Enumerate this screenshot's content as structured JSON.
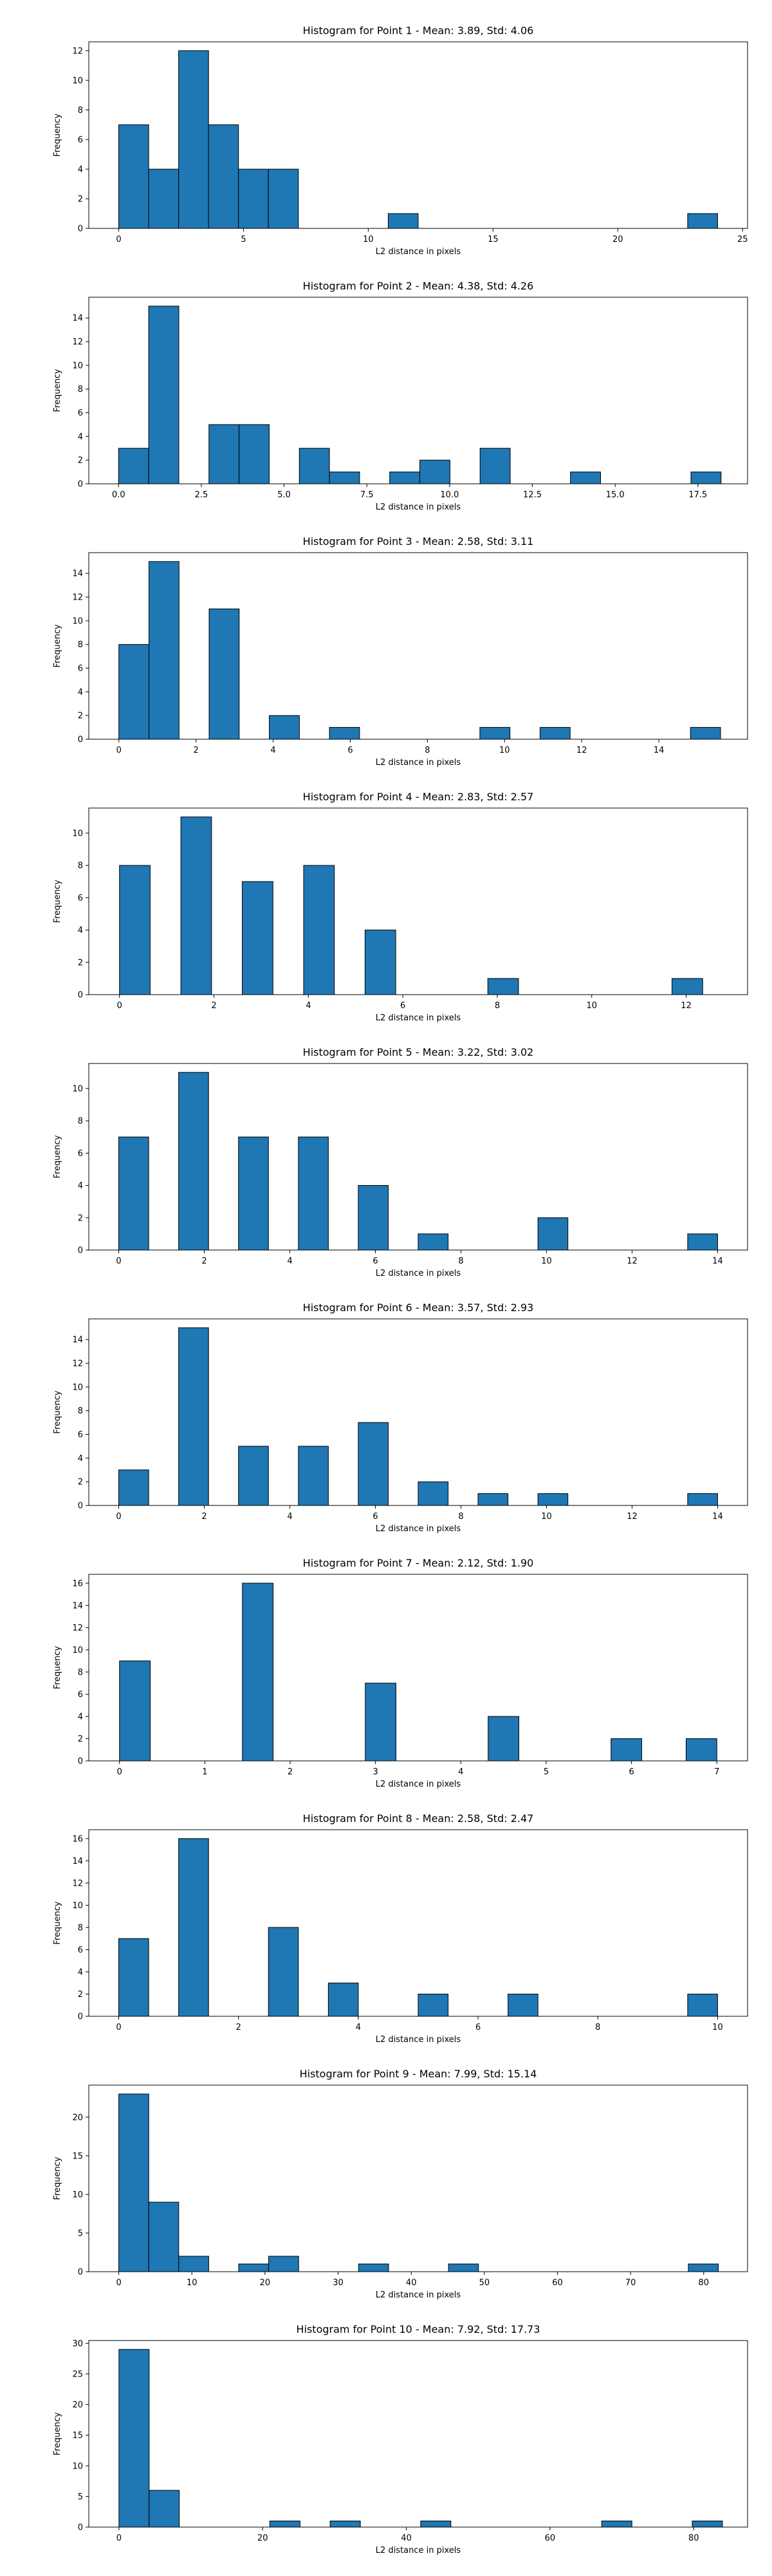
{
  "figure": {
    "background": "#ffffff"
  },
  "chart_data": [
    {
      "type": "bar",
      "title": "Histogram for Point 1 - Mean: 3.89, Std: 4.06",
      "xlabel": "L2 distance in pixels",
      "ylabel": "Frequency",
      "xlim": [
        -1.2,
        25.2
      ],
      "ylim": [
        0,
        12.6
      ],
      "xticks": [
        0,
        5,
        10,
        15,
        20,
        25
      ],
      "xtick_labels": [
        "0",
        "5",
        "10",
        "15",
        "20",
        "25"
      ],
      "yticks": [
        0,
        2,
        4,
        6,
        8,
        10,
        12
      ],
      "bar_color": "#1f77b4",
      "edge_color": "#000000",
      "grid": false,
      "bins": [
        {
          "x0": 0.0,
          "x1": 1.2,
          "count": 7
        },
        {
          "x0": 1.2,
          "x1": 2.4,
          "count": 4
        },
        {
          "x0": 2.4,
          "x1": 3.6,
          "count": 12
        },
        {
          "x0": 3.6,
          "x1": 4.8,
          "count": 7
        },
        {
          "x0": 4.8,
          "x1": 6.0,
          "count": 4
        },
        {
          "x0": 6.0,
          "x1": 7.2,
          "count": 4
        },
        {
          "x0": 10.8,
          "x1": 12.0,
          "count": 1
        },
        {
          "x0": 22.8,
          "x1": 24.0,
          "count": 1
        }
      ]
    },
    {
      "type": "bar",
      "title": "Histogram for Point 2 - Mean: 4.38, Std: 4.26",
      "xlabel": "L2 distance in pixels",
      "ylabel": "Frequency",
      "xlim": [
        -0.9,
        19.0
      ],
      "ylim": [
        0,
        15.75
      ],
      "xticks": [
        0,
        2.5,
        5,
        7.5,
        10,
        12.5,
        15,
        17.5
      ],
      "xtick_labels": [
        "0.0",
        "2.5",
        "5.0",
        "7.5",
        "10.0",
        "12.5",
        "15.0",
        "17.5"
      ],
      "yticks": [
        0,
        2,
        4,
        6,
        8,
        10,
        12,
        14
      ],
      "bar_color": "#1f77b4",
      "edge_color": "#000000",
      "grid": false,
      "bins": [
        {
          "x0": 0.0,
          "x1": 0.91,
          "count": 3
        },
        {
          "x0": 0.91,
          "x1": 1.82,
          "count": 15
        },
        {
          "x0": 2.73,
          "x1": 3.64,
          "count": 5
        },
        {
          "x0": 3.64,
          "x1": 4.55,
          "count": 5
        },
        {
          "x0": 5.46,
          "x1": 6.37,
          "count": 3
        },
        {
          "x0": 6.37,
          "x1": 7.28,
          "count": 1
        },
        {
          "x0": 8.19,
          "x1": 9.1,
          "count": 1
        },
        {
          "x0": 9.1,
          "x1": 10.01,
          "count": 2
        },
        {
          "x0": 10.92,
          "x1": 11.83,
          "count": 3
        },
        {
          "x0": 13.65,
          "x1": 14.56,
          "count": 1
        },
        {
          "x0": 17.29,
          "x1": 18.2,
          "count": 1
        }
      ]
    },
    {
      "type": "bar",
      "title": "Histogram for Point 3 - Mean: 2.58, Std: 3.11",
      "xlabel": "L2 distance in pixels",
      "ylabel": "Frequency",
      "xlim": [
        -0.78,
        16.3
      ],
      "ylim": [
        0,
        15.75
      ],
      "xticks": [
        0,
        2,
        4,
        6,
        8,
        10,
        12,
        14
      ],
      "xtick_labels": [
        "0",
        "2",
        "4",
        "6",
        "8",
        "10",
        "12",
        "14"
      ],
      "yticks": [
        0,
        2,
        4,
        6,
        8,
        10,
        12,
        14
      ],
      "bar_color": "#1f77b4",
      "edge_color": "#000000",
      "grid": false,
      "bins": [
        {
          "x0": 0.0,
          "x1": 0.78,
          "count": 8
        },
        {
          "x0": 0.78,
          "x1": 1.56,
          "count": 15
        },
        {
          "x0": 2.34,
          "x1": 3.12,
          "count": 11
        },
        {
          "x0": 3.9,
          "x1": 4.68,
          "count": 2
        },
        {
          "x0": 5.46,
          "x1": 6.24,
          "count": 1
        },
        {
          "x0": 9.36,
          "x1": 10.14,
          "count": 1
        },
        {
          "x0": 10.92,
          "x1": 11.7,
          "count": 1
        },
        {
          "x0": 14.82,
          "x1": 15.6,
          "count": 1
        }
      ]
    },
    {
      "type": "bar",
      "title": "Histogram for Point 4 - Mean: 2.83, Std: 2.57",
      "xlabel": "L2 distance in pixels",
      "ylabel": "Frequency",
      "xlim": [
        -0.65,
        13.3
      ],
      "ylim": [
        0,
        11.55
      ],
      "xticks": [
        0,
        2,
        4,
        6,
        8,
        10,
        12
      ],
      "xtick_labels": [
        "0",
        "2",
        "4",
        "6",
        "8",
        "10",
        "12"
      ],
      "yticks": [
        0,
        2,
        4,
        6,
        8,
        10
      ],
      "bar_color": "#1f77b4",
      "edge_color": "#000000",
      "grid": false,
      "bins": [
        {
          "x0": 0.0,
          "x1": 0.65,
          "count": 8
        },
        {
          "x0": 1.3,
          "x1": 1.95,
          "count": 11
        },
        {
          "x0": 2.6,
          "x1": 3.25,
          "count": 7
        },
        {
          "x0": 3.9,
          "x1": 4.55,
          "count": 8
        },
        {
          "x0": 5.2,
          "x1": 5.85,
          "count": 4
        },
        {
          "x0": 7.8,
          "x1": 8.45,
          "count": 1
        },
        {
          "x0": 11.7,
          "x1": 12.35,
          "count": 1
        }
      ]
    },
    {
      "type": "bar",
      "title": "Histogram for Point 5 - Mean: 3.22, Std: 3.02",
      "xlabel": "L2 distance in pixels",
      "ylabel": "Frequency",
      "xlim": [
        -0.7,
        14.7
      ],
      "ylim": [
        0,
        11.55
      ],
      "xticks": [
        0,
        2,
        4,
        6,
        8,
        10,
        12,
        14
      ],
      "xtick_labels": [
        "0",
        "2",
        "4",
        "6",
        "8",
        "10",
        "12",
        "14"
      ],
      "yticks": [
        0,
        2,
        4,
        6,
        8,
        10
      ],
      "bar_color": "#1f77b4",
      "edge_color": "#000000",
      "grid": false,
      "bins": [
        {
          "x0": 0.0,
          "x1": 0.7,
          "count": 7
        },
        {
          "x0": 1.4,
          "x1": 2.1,
          "count": 11
        },
        {
          "x0": 2.8,
          "x1": 3.5,
          "count": 7
        },
        {
          "x0": 4.2,
          "x1": 4.9,
          "count": 7
        },
        {
          "x0": 5.6,
          "x1": 6.3,
          "count": 4
        },
        {
          "x0": 7.0,
          "x1": 7.7,
          "count": 1
        },
        {
          "x0": 9.8,
          "x1": 10.5,
          "count": 2
        },
        {
          "x0": 13.3,
          "x1": 14.0,
          "count": 1
        }
      ]
    },
    {
      "type": "bar",
      "title": "Histogram for Point 6 - Mean: 3.57, Std: 2.93",
      "xlabel": "L2 distance in pixels",
      "ylabel": "Frequency",
      "xlim": [
        -0.7,
        14.7
      ],
      "ylim": [
        0,
        15.75
      ],
      "xticks": [
        0,
        2,
        4,
        6,
        8,
        10,
        12,
        14
      ],
      "xtick_labels": [
        "0",
        "2",
        "4",
        "6",
        "8",
        "10",
        "12",
        "14"
      ],
      "yticks": [
        0,
        2,
        4,
        6,
        8,
        10,
        12,
        14
      ],
      "bar_color": "#1f77b4",
      "edge_color": "#000000",
      "grid": false,
      "bins": [
        {
          "x0": 0.0,
          "x1": 0.7,
          "count": 3
        },
        {
          "x0": 1.4,
          "x1": 2.1,
          "count": 15
        },
        {
          "x0": 2.8,
          "x1": 3.5,
          "count": 5
        },
        {
          "x0": 4.2,
          "x1": 4.9,
          "count": 5
        },
        {
          "x0": 5.6,
          "x1": 6.3,
          "count": 7
        },
        {
          "x0": 7.0,
          "x1": 7.7,
          "count": 2
        },
        {
          "x0": 8.4,
          "x1": 9.1,
          "count": 1
        },
        {
          "x0": 9.8,
          "x1": 10.5,
          "count": 1
        },
        {
          "x0": 13.3,
          "x1": 14.0,
          "count": 1
        }
      ]
    },
    {
      "type": "bar",
      "title": "Histogram for Point 7 - Mean: 2.12, Std: 1.90",
      "xlabel": "L2 distance in pixels",
      "ylabel": "Frequency",
      "xlim": [
        -0.36,
        7.36
      ],
      "ylim": [
        0,
        16.8
      ],
      "xticks": [
        0,
        1,
        2,
        3,
        4,
        5,
        6,
        7
      ],
      "xtick_labels": [
        "0",
        "1",
        "2",
        "3",
        "4",
        "5",
        "6",
        "7"
      ],
      "yticks": [
        0,
        2,
        4,
        6,
        8,
        10,
        12,
        14,
        16
      ],
      "bar_color": "#1f77b4",
      "edge_color": "#000000",
      "grid": false,
      "bins": [
        {
          "x0": 0.0,
          "x1": 0.36,
          "count": 9
        },
        {
          "x0": 1.44,
          "x1": 1.8,
          "count": 16
        },
        {
          "x0": 2.88,
          "x1": 3.24,
          "count": 7
        },
        {
          "x0": 4.32,
          "x1": 4.68,
          "count": 4
        },
        {
          "x0": 5.76,
          "x1": 6.12,
          "count": 2
        },
        {
          "x0": 6.64,
          "x1": 7.0,
          "count": 2
        }
      ]
    },
    {
      "type": "bar",
      "title": "Histogram for Point 8 - Mean: 2.58, Std: 2.47",
      "xlabel": "L2 distance in pixels",
      "ylabel": "Frequency",
      "xlim": [
        -0.5,
        10.5
      ],
      "ylim": [
        0,
        16.8
      ],
      "xticks": [
        0,
        2,
        4,
        6,
        8,
        10
      ],
      "xtick_labels": [
        "0",
        "2",
        "4",
        "6",
        "8",
        "10"
      ],
      "yticks": [
        0,
        2,
        4,
        6,
        8,
        10,
        12,
        14,
        16
      ],
      "bar_color": "#1f77b4",
      "edge_color": "#000000",
      "grid": false,
      "bins": [
        {
          "x0": 0.0,
          "x1": 0.5,
          "count": 7
        },
        {
          "x0": 1.0,
          "x1": 1.5,
          "count": 16
        },
        {
          "x0": 2.5,
          "x1": 3.0,
          "count": 8
        },
        {
          "x0": 3.5,
          "x1": 4.0,
          "count": 3
        },
        {
          "x0": 5.0,
          "x1": 5.5,
          "count": 2
        },
        {
          "x0": 6.5,
          "x1": 7.0,
          "count": 2
        },
        {
          "x0": 9.5,
          "x1": 10.0,
          "count": 2
        }
      ]
    },
    {
      "type": "bar",
      "title": "Histogram for Point 9 - Mean: 7.99, Std: 15.14",
      "xlabel": "L2 distance in pixels",
      "ylabel": "Frequency",
      "xlim": [
        -4.1,
        86.0
      ],
      "ylim": [
        0,
        24.15
      ],
      "xticks": [
        0,
        10,
        20,
        30,
        40,
        50,
        60,
        70,
        80
      ],
      "xtick_labels": [
        "0",
        "10",
        "20",
        "30",
        "40",
        "50",
        "60",
        "70",
        "80"
      ],
      "yticks": [
        0,
        5,
        10,
        15,
        20
      ],
      "bar_color": "#1f77b4",
      "edge_color": "#000000",
      "grid": false,
      "bins": [
        {
          "x0": 0.0,
          "x1": 4.1,
          "count": 23
        },
        {
          "x0": 4.1,
          "x1": 8.2,
          "count": 9
        },
        {
          "x0": 8.2,
          "x1": 12.3,
          "count": 2
        },
        {
          "x0": 16.4,
          "x1": 20.5,
          "count": 1
        },
        {
          "x0": 20.5,
          "x1": 24.6,
          "count": 2
        },
        {
          "x0": 32.8,
          "x1": 36.9,
          "count": 1
        },
        {
          "x0": 45.1,
          "x1": 49.2,
          "count": 1
        },
        {
          "x0": 77.9,
          "x1": 82.0,
          "count": 1
        }
      ]
    },
    {
      "type": "bar",
      "title": "Histogram for Point 10 - Mean: 7.92, Std: 17.73",
      "xlabel": "L2 distance in pixels",
      "ylabel": "Frequency",
      "xlim": [
        -4.2,
        87.5
      ],
      "ylim": [
        0,
        30.45
      ],
      "xticks": [
        0,
        20,
        40,
        60,
        80
      ],
      "xtick_labels": [
        "0",
        "20",
        "40",
        "60",
        "80"
      ],
      "yticks": [
        0,
        5,
        10,
        15,
        20,
        25,
        30
      ],
      "bar_color": "#1f77b4",
      "edge_color": "#000000",
      "grid": false,
      "bins": [
        {
          "x0": 0.0,
          "x1": 4.2,
          "count": 29
        },
        {
          "x0": 4.2,
          "x1": 8.4,
          "count": 6
        },
        {
          "x0": 21.0,
          "x1": 25.2,
          "count": 1
        },
        {
          "x0": 29.4,
          "x1": 33.6,
          "count": 1
        },
        {
          "x0": 42.0,
          "x1": 46.2,
          "count": 1
        },
        {
          "x0": 67.2,
          "x1": 71.4,
          "count": 1
        },
        {
          "x0": 79.8,
          "x1": 84.0,
          "count": 1
        }
      ]
    }
  ]
}
